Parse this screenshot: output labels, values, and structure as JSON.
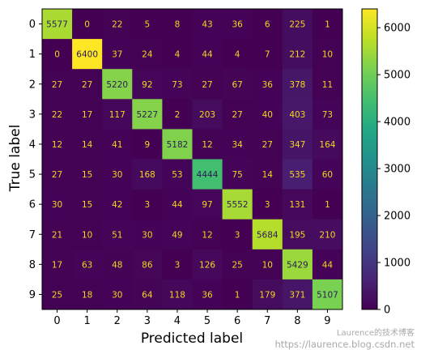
{
  "chart_data": {
    "type": "heatmap",
    "xlabel": "Predicted label",
    "ylabel": "True label",
    "x_ticks": [
      "0",
      "1",
      "2",
      "3",
      "4",
      "5",
      "6",
      "7",
      "8",
      "9"
    ],
    "y_ticks": [
      "0",
      "1",
      "2",
      "3",
      "4",
      "5",
      "6",
      "7",
      "8",
      "9"
    ],
    "matrix": [
      [
        5577,
        0,
        22,
        5,
        8,
        43,
        36,
        6,
        225,
        1
      ],
      [
        0,
        6400,
        37,
        24,
        4,
        44,
        4,
        7,
        212,
        10
      ],
      [
        27,
        27,
        5220,
        92,
        73,
        27,
        67,
        36,
        378,
        11
      ],
      [
        22,
        17,
        117,
        5227,
        2,
        203,
        27,
        40,
        403,
        73
      ],
      [
        12,
        14,
        41,
        9,
        5182,
        12,
        34,
        27,
        347,
        164
      ],
      [
        27,
        15,
        30,
        168,
        53,
        4444,
        75,
        14,
        535,
        60
      ],
      [
        30,
        15,
        42,
        3,
        44,
        97,
        5552,
        3,
        131,
        1
      ],
      [
        21,
        10,
        51,
        30,
        49,
        12,
        3,
        5684,
        195,
        210
      ],
      [
        17,
        63,
        48,
        86,
        3,
        126,
        25,
        10,
        5429,
        44
      ],
      [
        25,
        18,
        30,
        64,
        118,
        36,
        1,
        179,
        371,
        5107
      ]
    ],
    "colormap": "viridis",
    "color_range": [
      0,
      6400
    ],
    "colorbar_ticks": [
      0,
      1000,
      2000,
      3000,
      4000,
      5000,
      6000
    ],
    "colorbar_tick_labels": [
      "0",
      "1000",
      "2000",
      "3000",
      "4000",
      "5000",
      "6000"
    ],
    "text_color_dark_cells": "#f5d620",
    "text_color_light_cells": "#2a1a5a"
  },
  "watermark": {
    "line1": "Laurence的技术博客",
    "line2": "https://laurence.blog.csdn.net"
  }
}
